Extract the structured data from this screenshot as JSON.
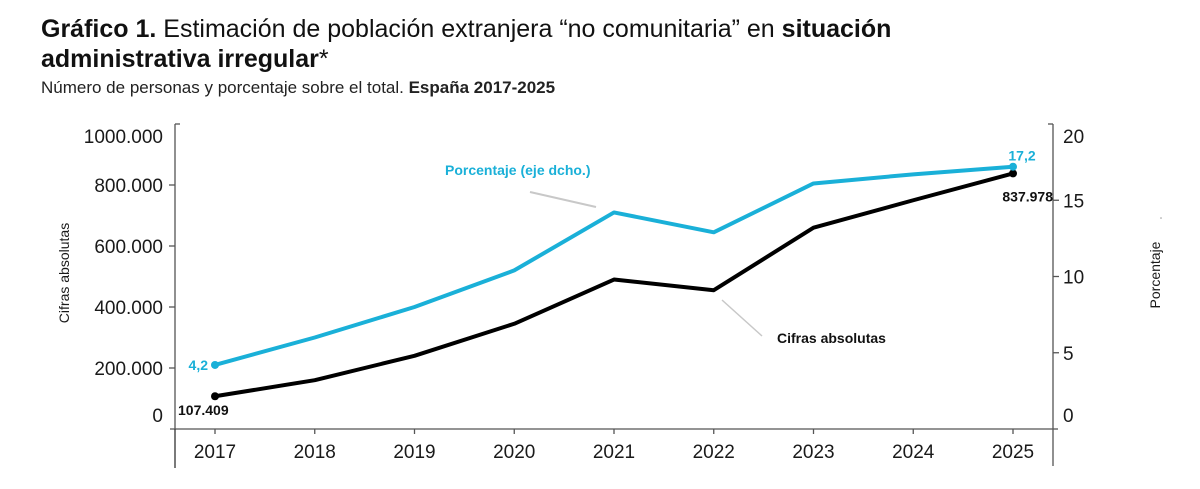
{
  "header": {
    "title_bold": "Gráfico 1.",
    "title_regular": " Estimación de población extranjera “no comunitaria” en ",
    "title_bold2": "situación administrativa irregular",
    "title_asterisk": "*",
    "subtitle_regular": "Número de personas y porcentaje sobre el total. ",
    "subtitle_bold": "España 2017-2025"
  },
  "chart_data": {
    "type": "line",
    "title": "Gráfico 1. Estimación de población extranjera “no comunitaria” en situación administrativa irregular*",
    "subtitle": "Número de personas y porcentaje sobre el total. España 2017-2025",
    "categories": [
      "2017",
      "2018",
      "2019",
      "2020",
      "2021",
      "2022",
      "2023",
      "2024",
      "2025"
    ],
    "series": [
      {
        "name": "Cifras absolutas",
        "axis": "left",
        "color": "#000000",
        "values": [
          107409,
          160000,
          240000,
          345000,
          490000,
          455000,
          660000,
          750000,
          837978
        ],
        "labels": {
          "first": "107.409",
          "last": "837.978"
        }
      },
      {
        "name": "Porcentaje (eje dcho.)",
        "axis": "right",
        "color": "#1ab0d8",
        "values": [
          4.2,
          6.0,
          8.0,
          10.4,
          14.2,
          12.9,
          16.1,
          16.7,
          17.2
        ],
        "labels": {
          "first": "4,2",
          "last": "17,2"
        }
      }
    ],
    "y_left": {
      "label": "Cifras absolutas",
      "range": [
        0,
        1000000
      ],
      "ticks": [
        0,
        200000,
        400000,
        600000,
        800000,
        1000000
      ],
      "tick_labels": [
        "0",
        "200.000",
        "400.000",
        "600.000",
        "800.000",
        "1000.000"
      ]
    },
    "y_right": {
      "label": "Porcentaje",
      "range": [
        0,
        20
      ],
      "ticks": [
        0,
        5,
        10,
        15,
        20
      ],
      "tick_labels": [
        "0",
        "5",
        "10",
        "15",
        "20"
      ]
    },
    "xlabel": "",
    "grid": false,
    "annotations": [
      {
        "text": "Porcentaje (eje dcho.)",
        "series": "Porcentaje (eje dcho.)"
      },
      {
        "text": "Cifras absolutas",
        "series": "Cifras absolutas"
      }
    ]
  }
}
